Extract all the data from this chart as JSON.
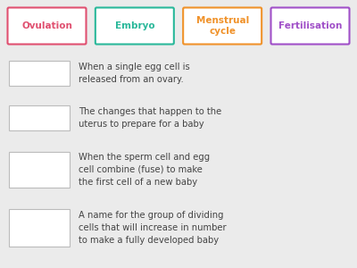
{
  "bg_color": "#ebebeb",
  "tags": [
    {
      "label": "Ovulation",
      "color": "#e05070"
    },
    {
      "label": "Embryo",
      "color": "#2ab89a"
    },
    {
      "label": "Menstrual\ncycle",
      "color": "#f0922a"
    },
    {
      "label": "Fertilisation",
      "color": "#a050c8"
    }
  ],
  "definitions": [
    "When a single egg cell is\nreleased from an ovary.",
    "The changes that happen to the\nuterus to prepare for a baby",
    "When the sperm cell and egg\ncell combine (fuse) to make\nthe first cell of a new baby",
    "A name for the group of dividing\ncells that will increase in number\nto make a fully developed baby"
  ],
  "box_edge_color": "#bbbbbb",
  "text_color": "#444444",
  "tag_font_size": 7.5,
  "def_font_size": 7.2
}
